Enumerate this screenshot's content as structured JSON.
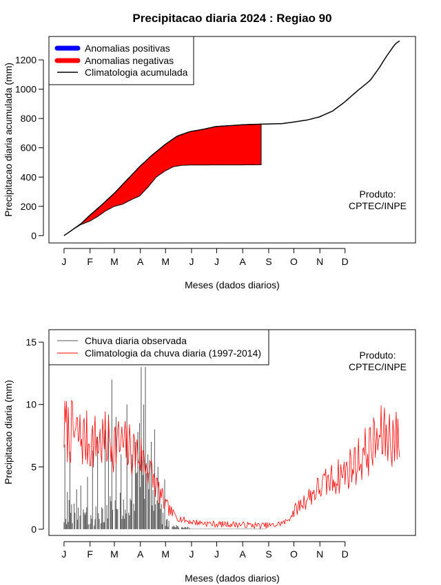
{
  "title": "Precipitacao diaria 2024 : Regiao 90",
  "chart_data": [
    {
      "type": "area",
      "name": "accumulated",
      "ylabel": "Precipitacao diaria acumulada (mm)",
      "xlabel": "Meses (dados diarios)",
      "month_ticks": [
        "J",
        "F",
        "M",
        "A",
        "M",
        "J",
        "J",
        "A",
        "S",
        "O",
        "N",
        "D"
      ],
      "ylim": [
        -50,
        1360
      ],
      "yticks": [
        0,
        200,
        400,
        600,
        800,
        1000,
        1200
      ],
      "legend": {
        "position": "top-left",
        "items": [
          {
            "label": "Anomalias positivas",
            "color": "#0000ff",
            "kind": "band"
          },
          {
            "label": "Anomalias negativas",
            "color": "#ff0000",
            "kind": "band"
          },
          {
            "label": "Climatologia acumulada",
            "color": "#000000",
            "kind": "line"
          }
        ]
      },
      "annotation": [
        "Produto:",
        "CPTEC/INPE"
      ],
      "climatology_cumulative": [
        [
          0,
          0
        ],
        [
          10,
          40
        ],
        [
          20,
          80
        ],
        [
          31,
          140
        ],
        [
          45,
          210
        ],
        [
          60,
          290
        ],
        [
          75,
          380
        ],
        [
          90,
          470
        ],
        [
          105,
          550
        ],
        [
          120,
          620
        ],
        [
          135,
          680
        ],
        [
          150,
          710
        ],
        [
          165,
          725
        ],
        [
          181,
          745
        ],
        [
          200,
          752
        ],
        [
          215,
          758
        ],
        [
          240,
          762
        ],
        [
          260,
          765
        ],
        [
          273,
          775
        ],
        [
          290,
          790
        ],
        [
          304,
          810
        ],
        [
          320,
          850
        ],
        [
          334,
          910
        ],
        [
          350,
          990
        ],
        [
          365,
          1060
        ],
        [
          375,
          1140
        ],
        [
          385,
          1230
        ],
        [
          395,
          1310
        ],
        [
          400,
          1330
        ]
      ],
      "observed_cumulative": [
        [
          0,
          0
        ],
        [
          10,
          40
        ],
        [
          20,
          75
        ],
        [
          31,
          100
        ],
        [
          40,
          130
        ],
        [
          50,
          170
        ],
        [
          60,
          200
        ],
        [
          70,
          215
        ],
        [
          80,
          245
        ],
        [
          90,
          270
        ],
        [
          100,
          330
        ],
        [
          110,
          400
        ],
        [
          120,
          440
        ],
        [
          130,
          470
        ],
        [
          140,
          480
        ],
        [
          150,
          482
        ],
        [
          181,
          483
        ],
        [
          210,
          483
        ],
        [
          235,
          484
        ]
      ]
    },
    {
      "type": "line",
      "name": "daily",
      "ylabel": "Precipitacao diaria (mm)",
      "xlabel": "Meses (dados diarios)",
      "month_ticks": [
        "J",
        "F",
        "M",
        "A",
        "M",
        "J",
        "J",
        "A",
        "S",
        "O",
        "N",
        "D"
      ],
      "ylim": [
        -0.5,
        16
      ],
      "yticks": [
        0,
        5,
        10,
        15
      ],
      "legend": {
        "position": "top-left",
        "items": [
          {
            "label": "Chuva diaria observada",
            "color": "#555555",
            "kind": "line"
          },
          {
            "label": "Climatologia da chuva diaria (1997-2014)",
            "color": "#ff0000",
            "kind": "line"
          }
        ]
      },
      "annotation": [
        "Produto:",
        "CPTEC/INPE"
      ],
      "climatology_anchors": [
        [
          0,
          8
        ],
        [
          15,
          7.5
        ],
        [
          31,
          7
        ],
        [
          45,
          7
        ],
        [
          60,
          7
        ],
        [
          75,
          6.5
        ],
        [
          90,
          6
        ],
        [
          100,
          5
        ],
        [
          110,
          3.5
        ],
        [
          120,
          2
        ],
        [
          130,
          1.2
        ],
        [
          140,
          0.8
        ],
        [
          150,
          0.6
        ],
        [
          165,
          0.5
        ],
        [
          181,
          0.4
        ],
        [
          200,
          0.4
        ],
        [
          230,
          0.3
        ],
        [
          250,
          0.3
        ],
        [
          265,
          0.6
        ],
        [
          275,
          1.5
        ],
        [
          290,
          2.5
        ],
        [
          304,
          3.3
        ],
        [
          320,
          4
        ],
        [
          334,
          4.5
        ],
        [
          350,
          5.5
        ],
        [
          365,
          6.5
        ],
        [
          380,
          7.5
        ],
        [
          392,
          7.5
        ],
        [
          400,
          7
        ]
      ],
      "observed_anchors": [
        [
          0,
          1.2
        ],
        [
          15,
          1
        ],
        [
          30,
          0.8
        ],
        [
          45,
          1
        ],
        [
          60,
          1.6
        ],
        [
          75,
          1.2
        ],
        [
          90,
          2.6
        ],
        [
          100,
          3
        ],
        [
          110,
          1.5
        ],
        [
          120,
          0.8
        ],
        [
          130,
          0.2
        ],
        [
          145,
          0.1
        ],
        [
          200,
          0
        ],
        [
          240,
          0
        ]
      ],
      "observed_peaks": [
        [
          1,
          6.8
        ],
        [
          4,
          3
        ],
        [
          7,
          6.2
        ],
        [
          15,
          3.2
        ],
        [
          20,
          3.5
        ],
        [
          28,
          4.2
        ],
        [
          34,
          6.3
        ],
        [
          40,
          7.4
        ],
        [
          49,
          8
        ],
        [
          53,
          9.2
        ],
        [
          57,
          12
        ],
        [
          62,
          9
        ],
        [
          68,
          6
        ],
        [
          75,
          10
        ],
        [
          81,
          6
        ],
        [
          85,
          7
        ],
        [
          88,
          7.8
        ],
        [
          90,
          8.5
        ],
        [
          92,
          13
        ],
        [
          95,
          10
        ],
        [
          97,
          13
        ],
        [
          100,
          6
        ],
        [
          104,
          7
        ],
        [
          108,
          8
        ],
        [
          112,
          5
        ],
        [
          116,
          2
        ],
        [
          120,
          4
        ]
      ]
    }
  ]
}
